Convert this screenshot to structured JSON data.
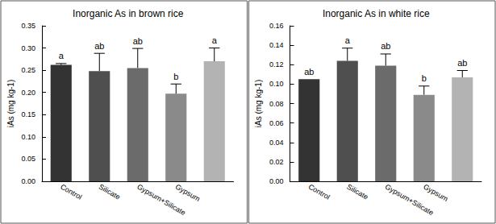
{
  "chart_data": [
    {
      "type": "bar",
      "title": "Inorganic As in brown rice",
      "categories": [
        "Control",
        "Silicate",
        "Gypsum+Silicate",
        "Gypsum",
        null
      ],
      "values": [
        0.262,
        0.248,
        0.255,
        0.197,
        0.27
      ],
      "errors": [
        0.003,
        0.04,
        0.044,
        0.022,
        0.03
      ],
      "letters": [
        "a",
        "ab",
        "ab",
        "b",
        "a"
      ],
      "colors": [
        "#333333",
        "#4f4f4f",
        "#6b6b6b",
        "#8a8a8a",
        "#b3b3b3"
      ],
      "ylabel": "iAs (mg kg-1)",
      "ylim": [
        0,
        0.35
      ],
      "yticks": [
        {
          "value": 0,
          "label": "0.00"
        },
        {
          "value": 0.05,
          "label": "0.05"
        },
        {
          "value": 0.1,
          "label": "0.10"
        },
        {
          "value": 0.15,
          "label": "0.15"
        },
        {
          "value": 0.2,
          "label": "0.20"
        },
        {
          "value": 0.25,
          "label": "0.25"
        },
        {
          "value": 0.3,
          "label": "0.30"
        },
        {
          "value": 0.35,
          "label": "0.35"
        }
      ],
      "grid": false
    },
    {
      "type": "bar",
      "title": "Inorganic As in white rice",
      "categories": [
        "Control",
        "Silicate",
        "Gypsum+Silicate",
        "Gypsum",
        null
      ],
      "values": [
        0.105,
        0.124,
        0.119,
        0.089,
        0.107
      ],
      "errors": [
        0,
        0.013,
        0.012,
        0.009,
        0.007
      ],
      "letters": [
        "ab",
        "a",
        "ab",
        "b",
        "ab"
      ],
      "colors": [
        "#333333",
        "#4f4f4f",
        "#6b6b6b",
        "#8a8a8a",
        "#b3b3b3"
      ],
      "ylabel": "iAs (mg kg-1)",
      "ylim": [
        0,
        0.16
      ],
      "yticks": [
        {
          "value": 0,
          "label": "0.00"
        },
        {
          "value": 0.02,
          "label": "0.02"
        },
        {
          "value": 0.04,
          "label": "0.04"
        },
        {
          "value": 0.06,
          "label": "0.06"
        },
        {
          "value": 0.08,
          "label": "0.08"
        },
        {
          "value": 0.1,
          "label": "0.10"
        },
        {
          "value": 0.12,
          "label": "0.12"
        },
        {
          "value": 0.14,
          "label": "0.14"
        },
        {
          "value": 0.16,
          "label": "0.16"
        }
      ],
      "grid": false
    }
  ]
}
